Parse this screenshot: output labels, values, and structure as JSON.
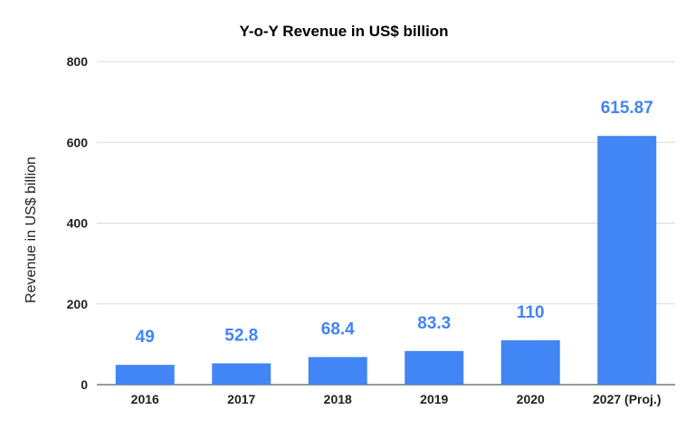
{
  "chart_data": {
    "type": "bar",
    "title": "Y-o-Y Revenue in US$ billion",
    "xlabel": "",
    "ylabel": "Revenue in US$ billion",
    "categories": [
      "2016",
      "2017",
      "2018",
      "2019",
      "2020",
      "2027 (Proj.)"
    ],
    "values": [
      49,
      52.8,
      68.4,
      83.3,
      110,
      615.87
    ],
    "data_labels": [
      "49",
      "52.8",
      "68.4",
      "83.3",
      "110",
      "615.87"
    ],
    "ylim": [
      0,
      800
    ],
    "yticks": [
      0,
      200,
      400,
      600,
      800
    ],
    "grid": true,
    "colors": {
      "bar": "#4285f4",
      "label": "#4285f4",
      "grid": "#d9d9d9",
      "axis": "#333333"
    }
  }
}
